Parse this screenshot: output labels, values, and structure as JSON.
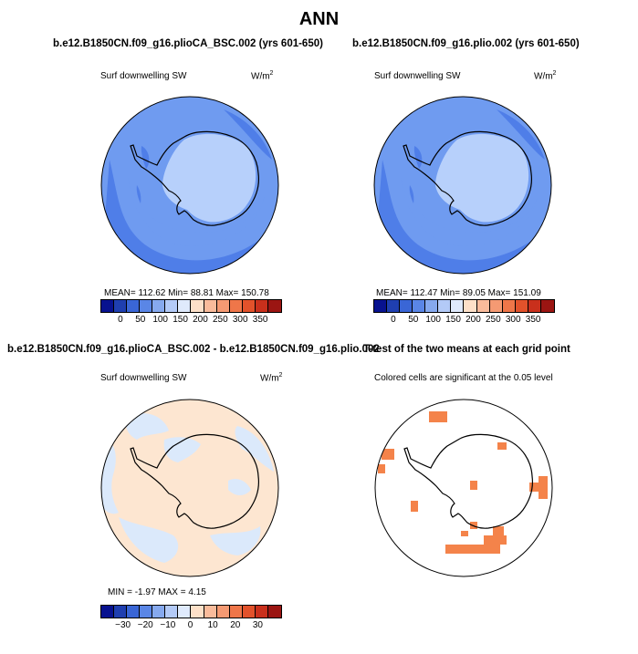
{
  "figure": {
    "title": "ANN"
  },
  "panels": [
    {
      "title": "b.e12.B1850CN.f09_g16.plioCA_BSC.002 (yrs 601-650)",
      "variable": "Surf downwelling SW",
      "units": "W/m",
      "units_sup": "2",
      "stats": "MEAN= 112.62   Min=   88.81   Max= 150.78",
      "colorbar_labels": [
        "0",
        "50",
        "100",
        "150",
        "200",
        "250",
        "300",
        "350"
      ]
    },
    {
      "title": "b.e12.B1850CN.f09_g16.plio.002 (yrs 601-650)",
      "variable": "Surf downwelling SW",
      "units": "W/m",
      "units_sup": "2",
      "stats": "MEAN= 112.47   Min=   89.05   Max= 151.09",
      "colorbar_labels": [
        "0",
        "50",
        "100",
        "150",
        "200",
        "250",
        "300",
        "350"
      ]
    },
    {
      "title": "b.e12.B1850CN.f09_g16.plioCA_BSC.002 - b.e12.B1850CN.f09_g16.plio.002",
      "variable": "Surf downwelling SW",
      "units": "W/m",
      "units_sup": "2",
      "stats": "MIN =   -1.97  MAX =    4.15",
      "colorbar_labels": [
        "−30",
        "−20",
        "−10",
        "0",
        "10",
        "20",
        "30"
      ]
    },
    {
      "title": "T-test of the two means at each grid point",
      "note": "Colored cells are significant at the 0.05 level"
    }
  ],
  "colors": {
    "ocean_mid": "#6f9bf0",
    "ocean_outer": "#4f7ee8",
    "ice": "#b7d0fb",
    "diff_neg": "#dbe9fb",
    "diff_pos": "#fde6d1",
    "significant": "#f4834a",
    "colorbar": [
      "#08128f",
      "#1f3fb0",
      "#3a66d6",
      "#5a86e6",
      "#86a9ee",
      "#b3caf7",
      "#dfeafc",
      "#fde0c8",
      "#f9bb9b",
      "#f59a73",
      "#ef7649",
      "#e2522b",
      "#c9301c",
      "#9b1512"
    ]
  }
}
